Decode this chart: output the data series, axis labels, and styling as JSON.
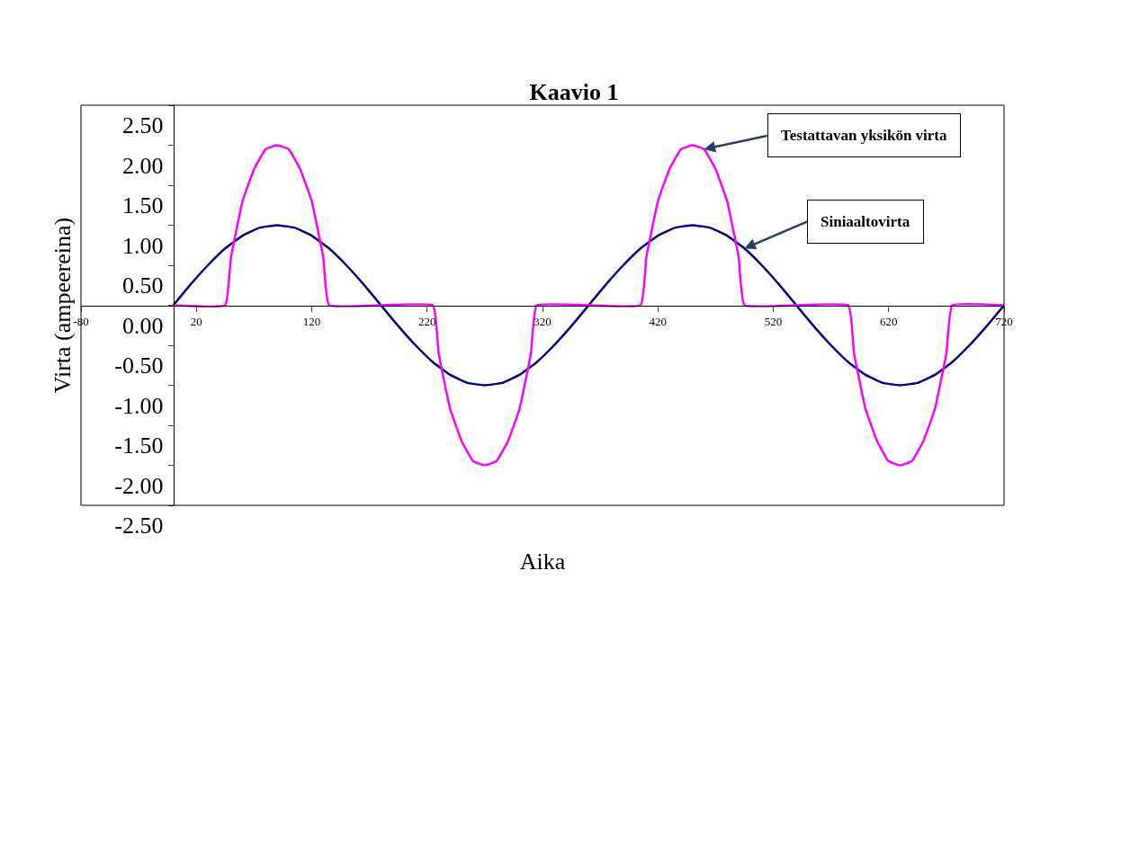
{
  "chart_data": {
    "type": "line",
    "title": "Kaavio 1",
    "xlabel": "Aika",
    "ylabel": "Virta (ampeereina)",
    "xlim": [
      -80,
      720
    ],
    "xticks": [
      -80,
      20,
      120,
      220,
      320,
      420,
      520,
      620,
      720
    ],
    "ylim": [
      -2.5,
      2.5
    ],
    "yticks": [
      {
        "value": -2.5,
        "label": "-2.50"
      },
      {
        "value": -2,
        "label": "-2.00"
      },
      {
        "value": -1.5,
        "label": "-1.50"
      },
      {
        "value": -1,
        "label": "-1.00"
      },
      {
        "value": -0.5,
        "label": "-0.50"
      },
      {
        "value": 0,
        "label": "0.00"
      },
      {
        "value": 0.5,
        "label": "0.50"
      },
      {
        "value": 1,
        "label": "1.00"
      },
      {
        "value": 1.5,
        "label": "1.50"
      },
      {
        "value": 2,
        "label": "2.00"
      },
      {
        "value": 2.5,
        "label": "2.50"
      }
    ],
    "marker": "none",
    "line_style": "solid",
    "series": [
      {
        "color": "#000080",
        "x": [
          0,
          15,
          30,
          45,
          60,
          75,
          90,
          105,
          120,
          135,
          150,
          165,
          180,
          195,
          210,
          225,
          240,
          255,
          270,
          285,
          300,
          315,
          330,
          345,
          360,
          375,
          390,
          405,
          420,
          435,
          450,
          465,
          480,
          495,
          510,
          525,
          540,
          555,
          570,
          585,
          600,
          615,
          630,
          645,
          660,
          675,
          690,
          705,
          720
        ],
        "values": [
          0,
          0.26,
          0.5,
          0.71,
          0.87,
          0.97,
          1,
          0.97,
          0.87,
          0.71,
          0.5,
          0.26,
          0,
          -0.26,
          -0.5,
          -0.71,
          -0.87,
          -0.97,
          -1,
          -0.97,
          -0.87,
          -0.71,
          -0.5,
          -0.26,
          0,
          0.26,
          0.5,
          0.71,
          0.87,
          0.97,
          1,
          0.97,
          0.87,
          0.71,
          0.5,
          0.26,
          0,
          -0.26,
          -0.5,
          -0.71,
          -0.87,
          -0.97,
          -1,
          -0.97,
          -0.87,
          -0.71,
          -0.5,
          -0.26,
          0
        ]
      },
      {
        "color": "#ff00ff",
        "x": [
          0,
          45,
          50,
          60,
          70,
          80,
          90,
          100,
          110,
          120,
          130,
          135,
          225,
          230,
          240,
          250,
          260,
          270,
          280,
          290,
          300,
          310,
          315,
          405,
          410,
          420,
          430,
          440,
          450,
          460,
          470,
          480,
          490,
          495,
          585,
          590,
          600,
          610,
          620,
          630,
          640,
          650,
          660,
          670,
          675,
          720
        ],
        "values": [
          0,
          0,
          0.6,
          1.3,
          1.7,
          1.95,
          2,
          1.95,
          1.7,
          1.3,
          0.6,
          0,
          0,
          -0.6,
          -1.3,
          -1.7,
          -1.95,
          -2,
          -1.95,
          -1.7,
          -1.3,
          -0.6,
          0,
          0,
          0.6,
          1.3,
          1.7,
          1.95,
          2,
          1.95,
          1.7,
          1.3,
          0.6,
          0,
          0,
          -0.6,
          -1.3,
          -1.7,
          -1.95,
          -2,
          -1.95,
          -1.7,
          -1.3,
          -0.6,
          0,
          0
        ]
      }
    ],
    "annotations": [
      {
        "text": "Testattavan yksikön virta",
        "x": 460,
        "y": 1.95
      },
      {
        "text": "Siniaaltovirta",
        "x": 495,
        "y": 0.71
      }
    ]
  }
}
